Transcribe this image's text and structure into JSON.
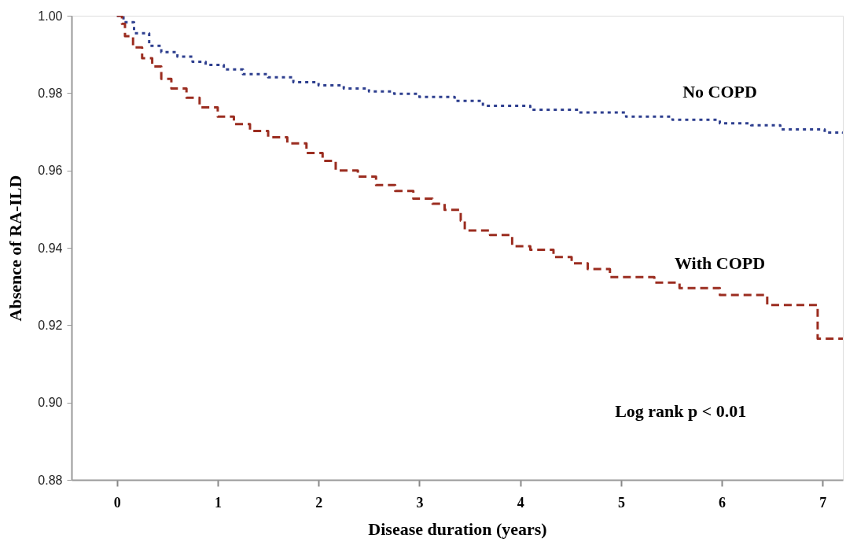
{
  "chart_data": {
    "type": "step",
    "xlabel": "Disease duration (years)",
    "ylabel": "Absence of RA-ILD",
    "xlim": [
      -0.45,
      7.2
    ],
    "ylim": [
      0.88,
      1.0
    ],
    "xticks": [
      0,
      1,
      2,
      3,
      4,
      5,
      6,
      7
    ],
    "yticks": [
      {
        "value": 0.88,
        "label": "0.88"
      },
      {
        "value": 0.9,
        "label": "0.90"
      },
      {
        "value": 0.92,
        "label": "0.92"
      },
      {
        "value": 0.94,
        "label": "0.94"
      },
      {
        "value": 0.96,
        "label": "0.96"
      },
      {
        "value": 0.98,
        "label": "0.98"
      },
      {
        "value": 1.0,
        "label": "1.00"
      }
    ],
    "grid": false,
    "series": [
      {
        "name": "No COPD",
        "color": "#2e3f8f",
        "line_style": "dotted",
        "x": [
          0,
          0.065,
          0.17,
          0.32,
          0.44,
          0.6,
          0.75,
          0.88,
          1.06,
          1.25,
          1.5,
          1.75,
          2.0,
          2.25,
          2.5,
          2.75,
          3.0,
          3.35,
          3.63,
          4.1,
          4.58,
          5.05,
          5.51,
          5.98,
          6.29,
          6.58,
          7.02,
          7.2
        ],
        "values": [
          1.0,
          0.9983,
          0.9955,
          0.9922,
          0.9906,
          0.9894,
          0.9881,
          0.9873,
          0.9861,
          0.9849,
          0.9841,
          0.9828,
          0.982,
          0.9812,
          0.9804,
          0.9798,
          0.979,
          0.978,
          0.9767,
          0.9757,
          0.975,
          0.9739,
          0.9731,
          0.9722,
          0.9717,
          0.9706,
          0.9698,
          0.9696
        ]
      },
      {
        "name": "With COPD",
        "color": "#9b2d20",
        "line_style": "dashed",
        "x": [
          0,
          0.05,
          0.08,
          0.16,
          0.25,
          0.35,
          0.44,
          0.54,
          0.69,
          0.82,
          1.0,
          1.16,
          1.32,
          1.5,
          1.69,
          1.88,
          2.04,
          2.17,
          2.39,
          2.57,
          2.76,
          2.94,
          3.13,
          3.25,
          3.41,
          3.45,
          3.7,
          3.92,
          4.1,
          4.33,
          4.51,
          4.67,
          4.89,
          5.33,
          5.58,
          5.98,
          6.45,
          6.95,
          7.2
        ],
        "values": [
          1.0,
          0.9979,
          0.9947,
          0.9918,
          0.989,
          0.9869,
          0.9837,
          0.9812,
          0.9788,
          0.9763,
          0.9739,
          0.972,
          0.9702,
          0.9686,
          0.967,
          0.9645,
          0.9625,
          0.96,
          0.9584,
          0.9562,
          0.9547,
          0.9527,
          0.9514,
          0.9498,
          0.947,
          0.9445,
          0.9433,
          0.9404,
          0.9395,
          0.9376,
          0.936,
          0.9345,
          0.9324,
          0.931,
          0.9296,
          0.9278,
          0.9252,
          0.9165,
          0.9165
        ]
      }
    ],
    "annotations": [
      "Log rank p < 0.01"
    ]
  }
}
